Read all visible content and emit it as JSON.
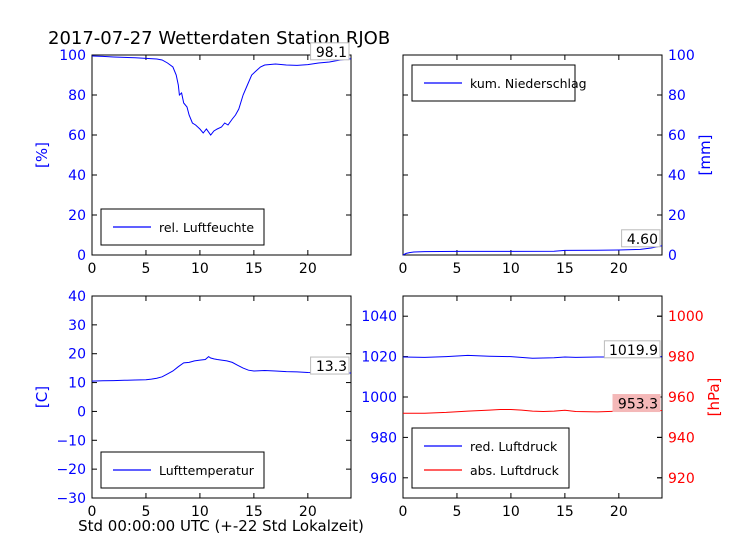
{
  "figure": {
    "title": "2017-07-27 Wetterdaten Station RJOB",
    "xlabel": "Std 00:00:00 UTC (+-22 Std Lokalzeit)"
  },
  "colors": {
    "blue": "#0000ff",
    "red": "#ff0000",
    "black": "#000000",
    "redbox": "#f4b8b8"
  },
  "chart_data": [
    {
      "id": "humidity",
      "type": "line",
      "ylabel": "[%]",
      "xlim": [
        0,
        24
      ],
      "ylim": [
        0,
        100
      ],
      "xticks": [
        0,
        5,
        10,
        15,
        20
      ],
      "yticks": [
        0,
        20,
        40,
        60,
        80,
        100
      ],
      "legend": "rel. Luftfeuchte",
      "legend_placement": "lower-left",
      "last_value_label": "98.1",
      "series": [
        {
          "name": "rel. Luftfeuchte",
          "color": "#0000ff",
          "x": [
            0,
            1,
            2,
            3,
            4,
            5,
            6,
            6.5,
            7,
            7.5,
            7.8,
            8.0,
            8.1,
            8.3,
            8.5,
            8.8,
            9.0,
            9.3,
            9.6,
            10.0,
            10.3,
            10.6,
            11.0,
            11.3,
            11.6,
            12.0,
            12.3,
            12.6,
            13.0,
            13.3,
            13.6,
            14.0,
            14.4,
            14.8,
            15.2,
            15.6,
            16.0,
            17.0,
            18.0,
            19.0,
            20.0,
            21.0,
            22.0,
            23.0,
            24.0
          ],
          "y": [
            99.5,
            99.3,
            99.0,
            98.8,
            98.6,
            98.3,
            98.0,
            97.5,
            96.0,
            94.0,
            90.0,
            85.0,
            80.0,
            81.0,
            76.0,
            74.0,
            70.0,
            66.0,
            65.0,
            63.0,
            61.0,
            63.0,
            60.0,
            62.0,
            63.0,
            64.0,
            66.0,
            65.0,
            68.0,
            70.0,
            73.0,
            80.0,
            85.0,
            90.0,
            92.0,
            94.0,
            95.0,
            95.5,
            95.0,
            94.8,
            95.2,
            96.0,
            96.5,
            97.5,
            98.1
          ]
        }
      ]
    },
    {
      "id": "precip",
      "type": "line",
      "ylabel": "[mm]",
      "xlim": [
        0,
        24
      ],
      "ylim": [
        0,
        100
      ],
      "xticks": [
        0,
        5,
        10,
        15,
        20
      ],
      "yticks": [
        0,
        20,
        40,
        60,
        80,
        100
      ],
      "legend": "kum. Niederschlag",
      "legend_placement": "top-left",
      "last_value_label": "4.60",
      "series": [
        {
          "name": "kum. Niederschlag",
          "color": "#0000ff",
          "x": [
            0,
            0.3,
            0.6,
            1.0,
            2.0,
            5.0,
            10.0,
            14.0,
            15.0,
            18.0,
            20.0,
            22.0,
            23.0,
            24.0
          ],
          "y": [
            0,
            0.8,
            1.2,
            1.5,
            1.7,
            1.8,
            1.8,
            1.9,
            2.3,
            2.4,
            2.5,
            2.8,
            3.5,
            4.6
          ]
        }
      ]
    },
    {
      "id": "temperature",
      "type": "line",
      "ylabel": "[C]",
      "xlim": [
        0,
        24
      ],
      "ylim": [
        -30,
        40
      ],
      "xticks": [
        0,
        5,
        10,
        15,
        20
      ],
      "yticks": [
        -30,
        -20,
        -10,
        0,
        10,
        20,
        30,
        40
      ],
      "legend": "Lufttemperatur",
      "legend_placement": "lower-left",
      "last_value_label": "13.3",
      "series": [
        {
          "name": "Lufttemperatur",
          "color": "#0000ff",
          "x": [
            0,
            1,
            2,
            3,
            4,
            5,
            5.5,
            6,
            6.5,
            7,
            7.5,
            8,
            8.5,
            9,
            9.5,
            10,
            10.5,
            10.8,
            11,
            11.3,
            11.6,
            12,
            12.5,
            13,
            13.5,
            14,
            14.5,
            15,
            16,
            17,
            18,
            19,
            20,
            21,
            22,
            23,
            24
          ],
          "y": [
            10.5,
            10.6,
            10.7,
            10.8,
            10.9,
            11.0,
            11.2,
            11.5,
            12.0,
            13.0,
            14.0,
            15.5,
            16.8,
            17.0,
            17.5,
            17.8,
            18.0,
            19.0,
            18.5,
            18.2,
            18.0,
            17.8,
            17.5,
            17.0,
            16.0,
            15.0,
            14.3,
            14.0,
            14.2,
            14.0,
            13.8,
            13.7,
            13.5,
            13.4,
            13.3,
            13.3,
            13.3
          ]
        }
      ]
    },
    {
      "id": "pressure",
      "type": "line",
      "ylabel": "[hPa]",
      "xlim": [
        0,
        24
      ],
      "ylim_left": [
        950,
        1050
      ],
      "ylim_right": [
        910,
        1010
      ],
      "xticks": [
        0,
        5,
        10,
        15,
        20
      ],
      "yticks_left": [
        960,
        980,
        1000,
        1020,
        1040
      ],
      "yticks_right": [
        920,
        940,
        960,
        980,
        1000
      ],
      "legend_placement": "lower-left",
      "series": [
        {
          "name": "red. Luftdruck",
          "color": "#0000ff",
          "axis": "left",
          "last_value_label": "1019.9",
          "x": [
            0,
            2,
            4,
            6,
            8,
            10,
            12,
            14,
            15,
            16,
            18,
            20,
            22,
            24
          ],
          "y": [
            1019.8,
            1019.6,
            1020.0,
            1020.6,
            1020.2,
            1020.0,
            1019.2,
            1019.4,
            1019.8,
            1019.6,
            1019.8,
            1019.8,
            1019.9,
            1019.9
          ]
        },
        {
          "name": "abs. Luftdruck",
          "color": "#ff0000",
          "axis": "right",
          "last_value_label": "953.3",
          "x": [
            0,
            2,
            4,
            6,
            8,
            9,
            10,
            11,
            12,
            13,
            14,
            15,
            16,
            18,
            20,
            22,
            24
          ],
          "y": [
            952.0,
            952.0,
            952.4,
            953.0,
            953.5,
            953.8,
            953.8,
            953.5,
            953.0,
            952.8,
            953.0,
            953.4,
            952.8,
            952.6,
            953.0,
            953.2,
            953.3
          ]
        }
      ]
    }
  ]
}
